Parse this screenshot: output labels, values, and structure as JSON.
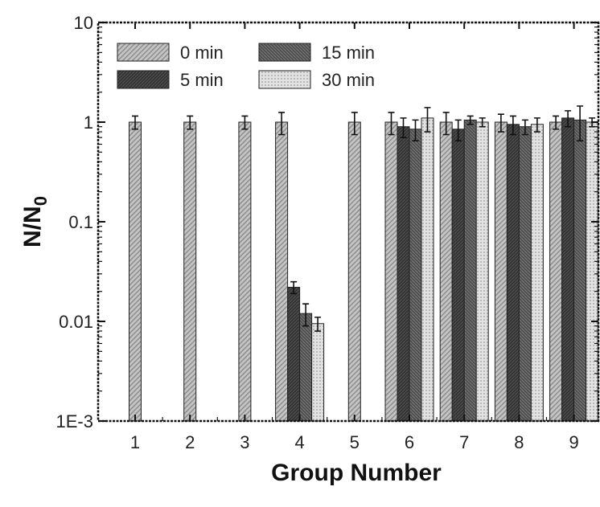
{
  "chart_data": {
    "type": "bar",
    "title": "",
    "xlabel": "Group Number",
    "ylabel_main": "N/N",
    "ylabel_sub": "0",
    "y_scale": "log",
    "ylim": [
      0.001,
      10
    ],
    "y_ticks": [
      {
        "value": 0.001,
        "label": "1E-3"
      },
      {
        "value": 0.01,
        "label": "0.01"
      },
      {
        "value": 0.1,
        "label": "0.1"
      },
      {
        "value": 1,
        "label": "1"
      },
      {
        "value": 10,
        "label": "10"
      }
    ],
    "categories": [
      "1",
      "2",
      "3",
      "4",
      "5",
      "6",
      "7",
      "8",
      "9"
    ],
    "legend_placement": "top-left",
    "series": [
      {
        "name": "0 min",
        "color": "#b8b8b8",
        "pattern": "light-hatch",
        "values": [
          1.0,
          1.0,
          1.0,
          1.0,
          1.0,
          1.0,
          1.0,
          1.0,
          1.0
        ],
        "errors": [
          0.15,
          0.15,
          0.15,
          0.25,
          0.25,
          0.25,
          0.25,
          0.2,
          0.15
        ]
      },
      {
        "name": "5 min",
        "color": "#3c3c3c",
        "pattern": "dark",
        "values": [
          null,
          null,
          null,
          0.022,
          null,
          0.9,
          0.85,
          0.95,
          1.1
        ],
        "errors": [
          null,
          null,
          null,
          0.003,
          null,
          0.2,
          0.2,
          0.2,
          0.2
        ]
      },
      {
        "name": "15 min",
        "color": "#5a5a5a",
        "pattern": "medium-dark",
        "values": [
          null,
          null,
          null,
          0.012,
          null,
          0.85,
          1.05,
          0.9,
          1.05
        ],
        "errors": [
          null,
          null,
          null,
          0.003,
          null,
          0.2,
          0.1,
          0.15,
          0.4
        ]
      },
      {
        "name": "30 min",
        "color": "#d4d4d4",
        "pattern": "dots",
        "values": [
          null,
          null,
          null,
          0.0095,
          null,
          1.1,
          1.0,
          0.95,
          1.0
        ],
        "errors": [
          null,
          null,
          null,
          0.0015,
          null,
          0.3,
          0.1,
          0.15,
          0.1
        ]
      }
    ]
  }
}
